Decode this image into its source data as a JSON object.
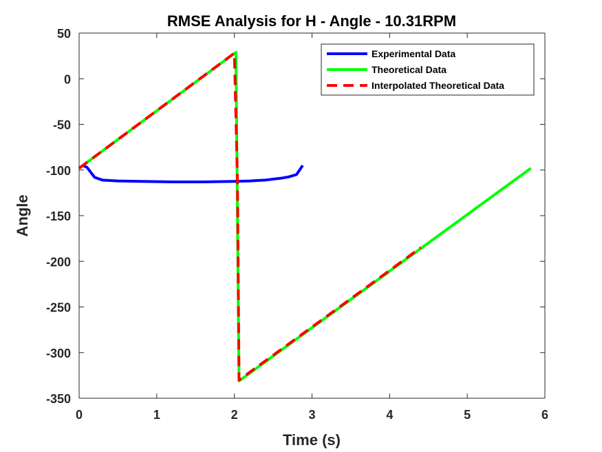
{
  "chart_data": {
    "type": "line",
    "title": "RMSE Analysis for H - Angle - 10.31RPM",
    "xlabel": "Time (s)",
    "ylabel": "Angle",
    "xlim": [
      0,
      6
    ],
    "ylim": [
      -350,
      50
    ],
    "xticks": [
      0,
      1,
      2,
      3,
      4,
      5,
      6
    ],
    "yticks": [
      50,
      0,
      -50,
      -100,
      -150,
      -200,
      -250,
      -300,
      -350
    ],
    "grid": false,
    "legend_position": "top-right",
    "series": [
      {
        "name": "Experimental Data",
        "color": "#0000ff",
        "dash": "solid",
        "x": [
          0.05,
          0.1,
          0.2,
          0.3,
          0.5,
          0.8,
          1.2,
          1.6,
          2.0,
          2.2,
          2.4,
          2.6,
          2.7,
          2.8,
          2.88
        ],
        "y": [
          -95,
          -97,
          -108,
          -111,
          -112,
          -112.5,
          -113,
          -113,
          -112.5,
          -112,
          -111,
          -109,
          -107.5,
          -105,
          -95
        ]
      },
      {
        "name": "Theoretical Data",
        "color": "#00ff00",
        "dash": "solid",
        "x": [
          0.0,
          2.02,
          2.06,
          5.82
        ],
        "y": [
          -98,
          29,
          -331,
          -98
        ]
      },
      {
        "name": "Interpolated Theoretical Data",
        "color": "#ff0000",
        "dash": "dashed",
        "x": [
          0.0,
          2.0,
          2.04,
          2.06,
          3.0,
          4.0,
          4.4
        ],
        "y": [
          -98,
          28,
          -112,
          -330,
          -272,
          -210,
          -185
        ]
      }
    ]
  }
}
